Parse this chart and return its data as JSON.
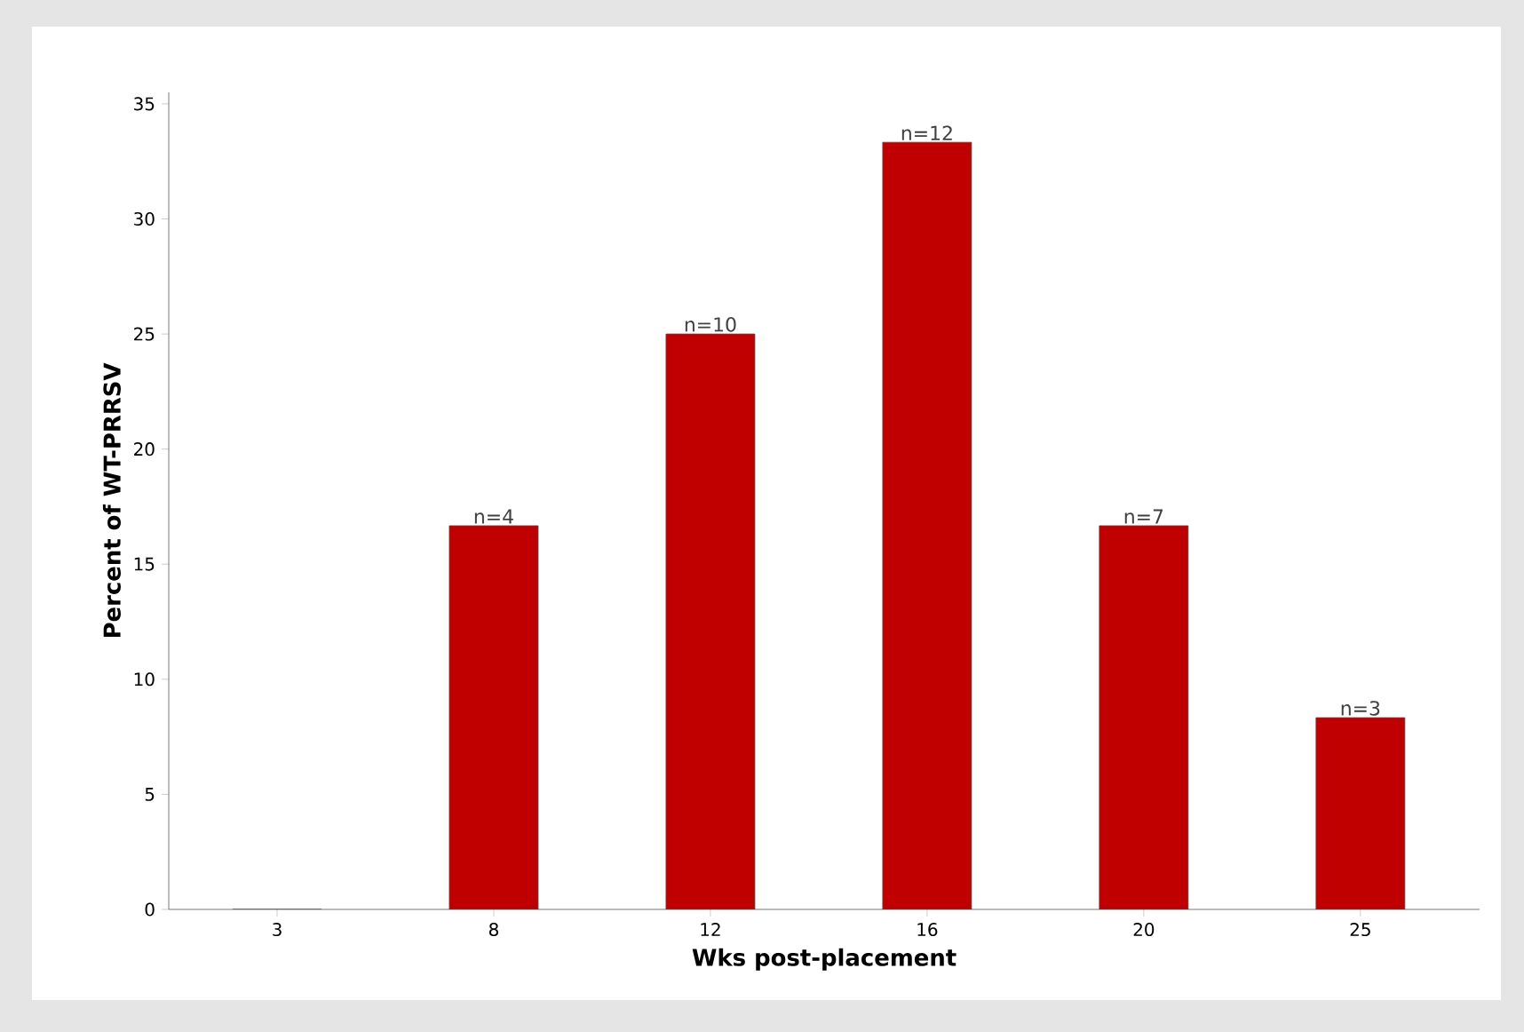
{
  "chart_data": {
    "type": "bar",
    "xlabel": "Wks post-placement",
    "ylabel": "Percent of WT-PRRSV",
    "categories": [
      "3",
      "8",
      "12",
      "16",
      "20",
      "25"
    ],
    "values": [
      0,
      16.67,
      25,
      33.33,
      16.67,
      8.33
    ],
    "annotations": [
      {
        "text": "n=4",
        "x": "8",
        "y": 16.67
      },
      {
        "text": "n=10",
        "x": "12",
        "y": 25
      },
      {
        "text": "n=12",
        "x": "16",
        "y": 33.33
      },
      {
        "text": "n=7",
        "x": "20",
        "y": 16.67
      },
      {
        "text": "n=3",
        "x": "25",
        "y": 8.33
      }
    ],
    "color": "#c00000",
    "ylim": [
      0,
      35.5
    ],
    "yticks": [
      0,
      5,
      10,
      15,
      20,
      25,
      30,
      35
    ]
  }
}
